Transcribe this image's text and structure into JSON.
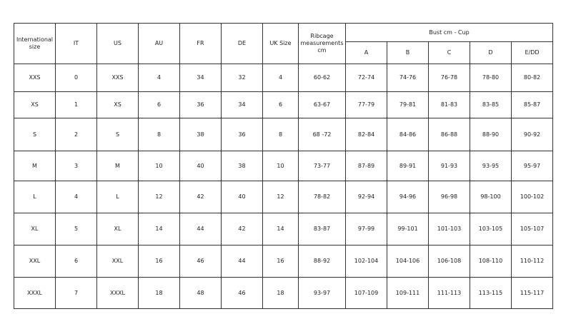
{
  "table": {
    "headers": [
      "International size",
      "IT",
      "US",
      "AU",
      "FR",
      "DE",
      "UK Size",
      "Ribcage measurements cm"
    ],
    "bust_group": "Bust cm - Cup",
    "cups": [
      "A",
      "B",
      "C",
      "D",
      "E/DD"
    ],
    "rows": [
      [
        "XXS",
        "0",
        "XXS",
        "4",
        "34",
        "32",
        "4",
        "60-62",
        "72-74",
        "74-76",
        "76-78",
        "78-80",
        "80-82"
      ],
      [
        "XS",
        "1",
        "XS",
        "6",
        "36",
        "34",
        "6",
        "63-67",
        "77-79",
        "79-81",
        "81-83",
        "83-85",
        "85-87"
      ],
      [
        "S",
        "2",
        "S",
        "8",
        "38",
        "36",
        "8",
        "68 -72",
        "82-84",
        "84-86",
        "86-88",
        "88-90",
        "90-92"
      ],
      [
        "M",
        "3",
        "M",
        "10",
        "40",
        "38",
        "10",
        "73-77",
        "87-89",
        "89-91",
        "91-93",
        "93-95",
        "95-97"
      ],
      [
        "L",
        "4",
        "L",
        "12",
        "42",
        "40",
        "12",
        "78-82",
        "92-94",
        "94-96",
        "96-98",
        "98-100",
        "100-102"
      ],
      [
        "XL",
        "5",
        "XL",
        "14",
        "44",
        "42",
        "14",
        "83-87",
        "97-99",
        "99-101",
        "101-103",
        "103-105",
        "105-107"
      ],
      [
        "XXL",
        "6",
        "XXL",
        "16",
        "46",
        "44",
        "16",
        "88-92",
        "102-104",
        "104-106",
        "106-108",
        "108-110",
        "110-112"
      ],
      [
        "XXXL",
        "7",
        "XXXL",
        "18",
        "48",
        "46",
        "18",
        "93-97",
        "107-109",
        "109-111",
        "111-113",
        "113-115",
        "115-117"
      ]
    ]
  }
}
